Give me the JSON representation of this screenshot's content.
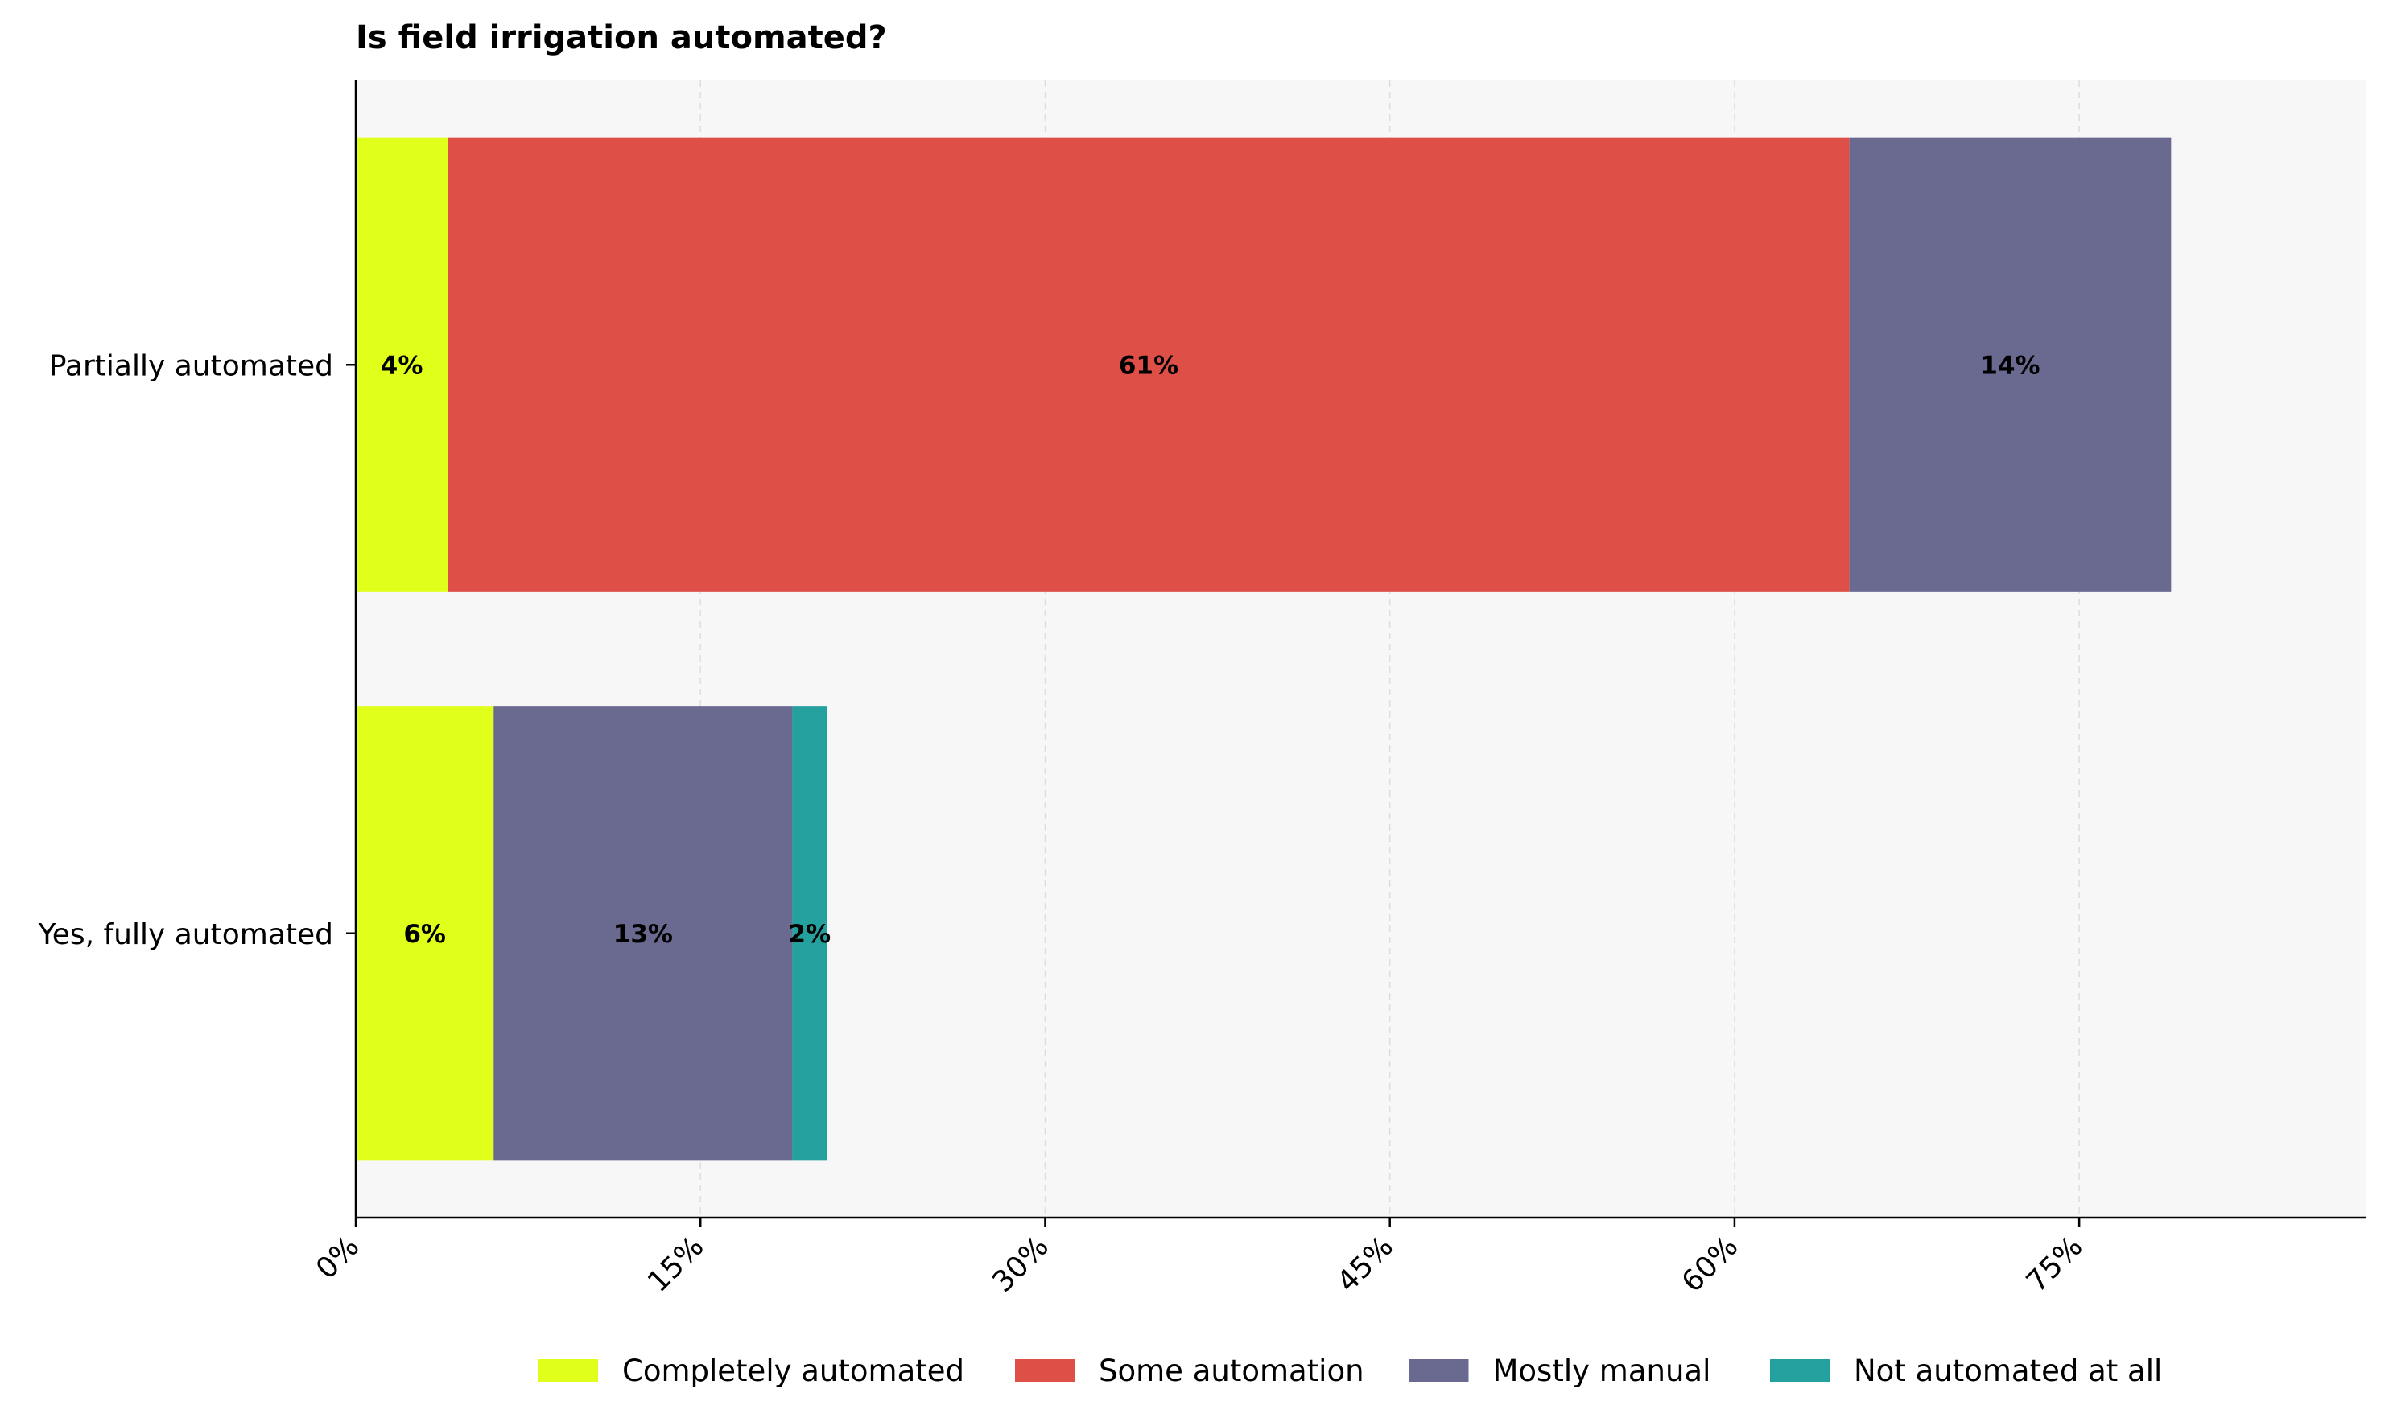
{
  "chart_data": {
    "type": "bar",
    "orientation": "horizontal",
    "stacked": true,
    "title": "Is field irrigation automated?",
    "xlabel": "",
    "ylabel": "",
    "categories": [
      "Partially automated",
      "Yes, fully automated"
    ],
    "series": [
      {
        "name": "Completely automated",
        "color": "#e0ff1a",
        "values": [
          4,
          6
        ],
        "labels": [
          "4%",
          "6%"
        ]
      },
      {
        "name": "Some automation",
        "color": "#de4f48",
        "values": [
          61,
          0
        ],
        "labels": [
          "61%",
          ""
        ]
      },
      {
        "name": "Mostly manual",
        "color": "#6a6990",
        "values": [
          14,
          13
        ],
        "labels": [
          "14%",
          "13%"
        ]
      },
      {
        "name": "Not automated at all",
        "color": "#24a19e",
        "values": [
          0,
          1.5
        ],
        "labels": [
          "",
          "2%"
        ]
      }
    ],
    "xlim": [
      0,
      87.5
    ],
    "xticks": [
      0,
      15,
      30,
      45,
      60,
      75
    ],
    "xtick_labels": [
      "0%",
      "15%",
      "30%",
      "45%",
      "60%",
      "75%"
    ],
    "grid": "vertical dashed",
    "legend": "bottom-center",
    "plot_background": "#f7f7f7"
  }
}
